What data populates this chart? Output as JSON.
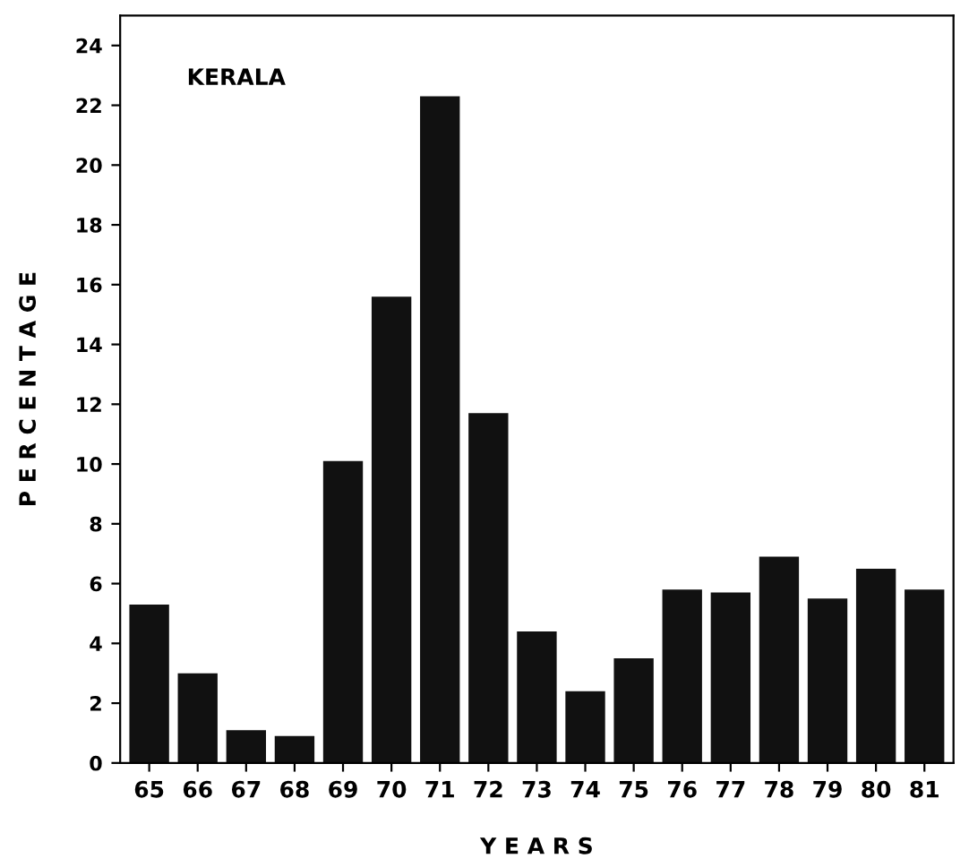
{
  "chart_data": {
    "type": "bar",
    "categories": [
      "65",
      "66",
      "67",
      "68",
      "69",
      "70",
      "71",
      "72",
      "73",
      "74",
      "75",
      "76",
      "77",
      "78",
      "79",
      "80",
      "81"
    ],
    "values": [
      5.3,
      3.0,
      1.1,
      0.9,
      10.1,
      15.6,
      22.3,
      11.7,
      4.4,
      2.4,
      3.5,
      5.8,
      5.7,
      6.9,
      5.5,
      6.5,
      5.8
    ],
    "color": "#111111",
    "xlabel": "Y E A R S",
    "ylabel": "P E R C E N T A G E",
    "annotations": [
      "KERALA"
    ],
    "ylim": [
      0,
      25
    ],
    "yticks": [
      0,
      2,
      4,
      6,
      8,
      10,
      12,
      14,
      16,
      18,
      20,
      22,
      24
    ],
    "grid": false
  }
}
